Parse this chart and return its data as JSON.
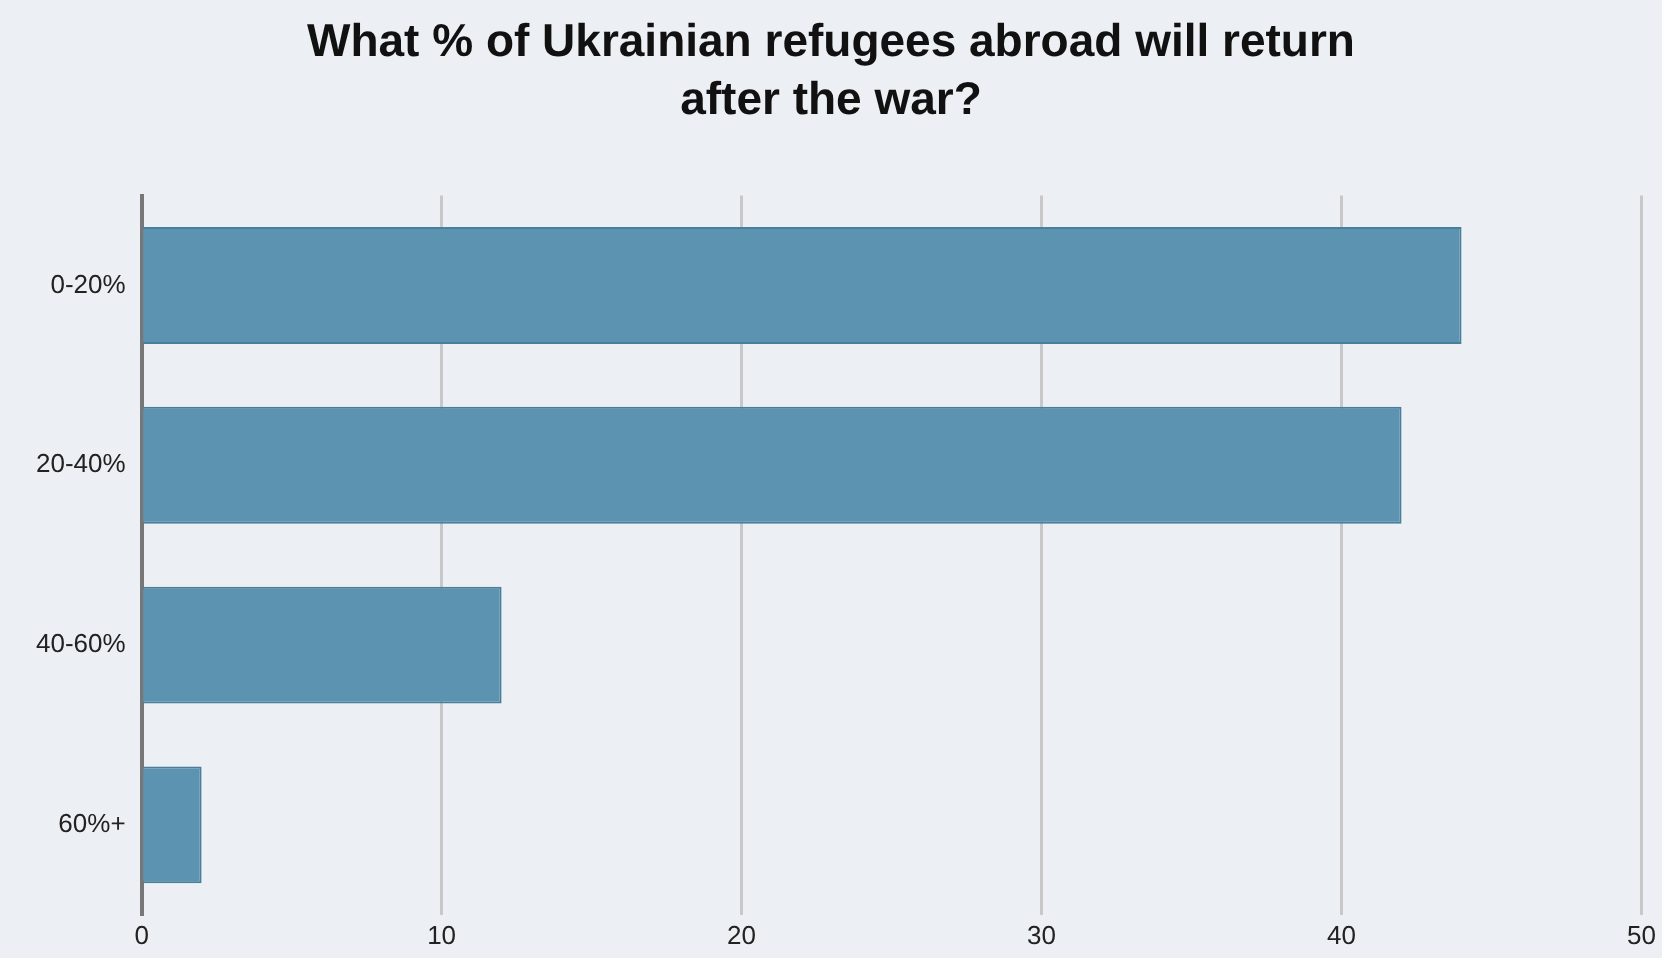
{
  "chart_data": {
    "type": "bar",
    "orientation": "horizontal",
    "title": "What % of Ukrainian refugees abroad will return after the war?",
    "categories": [
      "0-20%",
      "20-40%",
      "40-60%",
      "60%+"
    ],
    "values": [
      44,
      42,
      12,
      2
    ],
    "color": "#5b93b0",
    "xlim": [
      0,
      50
    ],
    "xticks": [
      0,
      10,
      20,
      30,
      40,
      50
    ],
    "grid": "x"
  }
}
